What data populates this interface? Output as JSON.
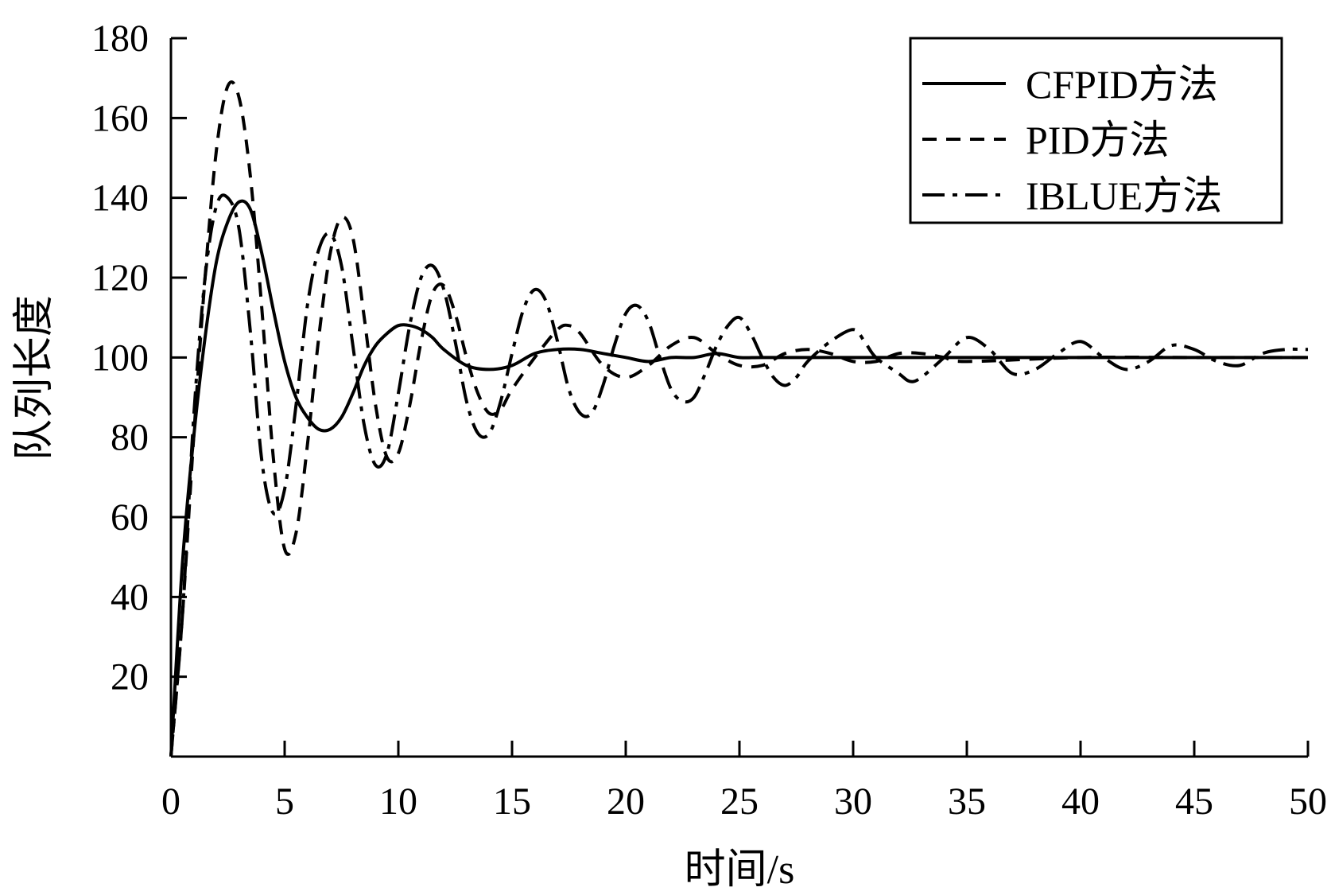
{
  "chart_data": {
    "type": "line",
    "xlabel": "时间/s",
    "ylabel": "队列长度",
    "xlim": [
      0,
      50
    ],
    "ylim": [
      0,
      180
    ],
    "xticks": [
      "0",
      "5",
      "10",
      "15",
      "20",
      "25",
      "30",
      "35",
      "40",
      "45",
      "50"
    ],
    "yticks": [
      "20",
      "40",
      "60",
      "80",
      "100",
      "120",
      "140",
      "160",
      "180"
    ],
    "grid": false,
    "legend_position": "top-right",
    "series": [
      {
        "name": "CFPID方法",
        "style": "solid",
        "x": [
          0,
          0.5,
          1.0,
          1.5,
          2.0,
          2.5,
          3.0,
          3.5,
          4.0,
          4.5,
          5.0,
          5.5,
          6.0,
          6.5,
          7.0,
          7.5,
          8.0,
          8.5,
          9.0,
          9.5,
          10.0,
          10.5,
          11.0,
          11.5,
          12.0,
          13.0,
          14.0,
          15.0,
          16.0,
          17.0,
          18.0,
          19.0,
          20.0,
          21.0,
          22.0,
          23.0,
          24.0,
          25.0,
          26.0,
          28.0,
          30.0,
          35.0,
          40.0,
          45.0,
          50.0
        ],
        "y": [
          0,
          48,
          80,
          105,
          124,
          134,
          139,
          137,
          126,
          112,
          99,
          90,
          85,
          82,
          82,
          85,
          91,
          98,
          103,
          106,
          108,
          108,
          107,
          105,
          102,
          98,
          97,
          98,
          101,
          102,
          102,
          101,
          100,
          99,
          100,
          100,
          101,
          100,
          100,
          100,
          100,
          100,
          100,
          100,
          100
        ]
      },
      {
        "name": "PID方法",
        "style": "dashed",
        "x": [
          0,
          0.5,
          1.0,
          1.5,
          2.0,
          2.5,
          3.0,
          3.5,
          4.0,
          4.5,
          5.0,
          5.5,
          6.0,
          6.5,
          7.0,
          7.5,
          8.0,
          8.5,
          9.0,
          9.5,
          10.0,
          10.5,
          11.0,
          11.5,
          12.0,
          12.5,
          13.0,
          13.5,
          14.0,
          14.5,
          15.0,
          16.0,
          17.0,
          17.5,
          18.0,
          19.0,
          20.0,
          21.0,
          22.0,
          23.0,
          24.0,
          25.0,
          26.0,
          27.0,
          28.0,
          29.0,
          30.0,
          31.0,
          32.0,
          33.0,
          34.0,
          35.0,
          40.0,
          45.0,
          50.0
        ],
        "y": [
          0,
          35,
          80,
          120,
          152,
          168,
          165,
          145,
          112,
          75,
          52,
          56,
          78,
          105,
          126,
          135,
          130,
          110,
          88,
          75,
          76,
          88,
          104,
          116,
          118,
          111,
          100,
          91,
          86,
          87,
          92,
          100,
          107,
          108,
          106,
          98,
          95,
          98,
          103,
          105,
          101,
          98,
          98,
          101,
          102,
          101,
          99,
          99,
          101,
          101,
          100,
          99,
          100,
          100,
          100
        ]
      },
      {
        "name": "IBLUE方法",
        "style": "dash-dot",
        "x": [
          0,
          0.5,
          1.0,
          1.5,
          2.0,
          2.5,
          3.0,
          3.5,
          4.0,
          4.5,
          5.0,
          5.5,
          6.0,
          6.5,
          7.0,
          7.5,
          8.0,
          8.5,
          9.0,
          9.5,
          10.0,
          10.5,
          11.0,
          11.5,
          12.0,
          12.5,
          13.0,
          13.5,
          14.0,
          14.5,
          15.0,
          15.5,
          16.0,
          16.5,
          17.0,
          17.5,
          18.0,
          18.5,
          19.0,
          19.5,
          20.0,
          20.5,
          21.0,
          21.5,
          22.0,
          22.5,
          23.0,
          23.5,
          24.0,
          24.5,
          25.0,
          25.5,
          26.0,
          26.5,
          27.0,
          27.5,
          28.0,
          29.0,
          30.0,
          30.5,
          31.0,
          32.0,
          32.5,
          33.0,
          34.0,
          35.0,
          36.0,
          37.0,
          38.0,
          39.0,
          40.0,
          41.0,
          42.0,
          43.0,
          44.0,
          45.0,
          46.0,
          47.0,
          48.0,
          49.0,
          50.0
        ],
        "y": [
          0,
          35,
          85,
          120,
          138,
          140,
          132,
          106,
          74,
          61,
          67,
          88,
          113,
          127,
          131,
          123,
          103,
          83,
          73,
          76,
          91,
          108,
          120,
          123,
          117,
          104,
          89,
          81,
          81,
          89,
          101,
          112,
          117,
          114,
          104,
          92,
          86,
          86,
          93,
          103,
          111,
          113,
          109,
          100,
          92,
          89,
          90,
          96,
          103,
          108,
          110,
          106,
          100,
          95,
          93,
          95,
          99,
          104,
          107,
          104,
          100,
          96,
          94,
          95,
          100,
          105,
          102,
          96,
          97,
          101,
          104,
          100,
          97,
          99,
          103,
          102,
          99,
          98,
          101,
          102,
          102
        ]
      }
    ]
  }
}
